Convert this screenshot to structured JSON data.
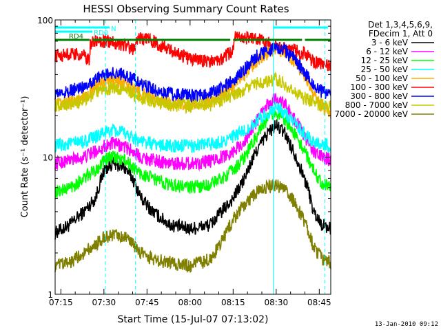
{
  "chart_data": {
    "type": "line",
    "title": "HESSI Observing Summary Count Rates",
    "xlabel": "Start Time (15-Jul-07 07:13:02)",
    "ylabel": "Count Rate (s⁻¹ detector⁻¹)",
    "yscale": "log",
    "ylim": [
      1,
      100
    ],
    "xlim_minutes": [
      0,
      96
    ],
    "x_tick_labels": [
      "07:15",
      "07:30",
      "07:45",
      "08:00",
      "08:15",
      "08:30",
      "08:45"
    ],
    "x_tick_minutes": [
      2,
      17,
      32,
      47,
      62,
      77,
      92
    ],
    "y_tick_labels": [
      "1",
      "10",
      "100"
    ],
    "y_tick_values": [
      1,
      10,
      100
    ],
    "grid": false,
    "legend_position": "right",
    "legend_header": [
      "Det 1,3,4,5,6,9,",
      "FDecim 1, Att 0"
    ],
    "x_unit": "minutes since 07:13:02",
    "series": [
      {
        "name": "3 - 6 keV",
        "color": "#000000",
        "x": [
          0,
          5,
          10,
          14,
          17,
          20,
          24,
          27,
          30,
          34,
          40,
          47,
          54,
          58,
          62,
          66,
          70,
          74,
          77,
          80,
          84,
          88,
          90,
          93,
          96
        ],
        "y": [
          2.8,
          3.2,
          4,
          5,
          8,
          9,
          8.5,
          7,
          5,
          4,
          3.2,
          3,
          3.2,
          4,
          5,
          7,
          11,
          15,
          17,
          15,
          10,
          6,
          4,
          3.2,
          3
        ]
      },
      {
        "name": "6 - 12 keV",
        "color": "#ff00ff",
        "x": [
          0,
          5,
          10,
          14,
          17,
          20,
          24,
          27,
          30,
          34,
          40,
          47,
          54,
          58,
          62,
          66,
          70,
          74,
          77,
          80,
          84,
          88,
          90,
          93,
          96
        ],
        "y": [
          9,
          9.5,
          10,
          11,
          12,
          12.5,
          12,
          11,
          10,
          9.5,
          9,
          9,
          9.3,
          10,
          11,
          13,
          18,
          24,
          27,
          24,
          18,
          13,
          11,
          10,
          9.5
        ]
      },
      {
        "name": "12 - 25 keV",
        "color": "#00ff00",
        "x": [
          0,
          5,
          10,
          14,
          17,
          20,
          24,
          27,
          30,
          34,
          40,
          47,
          54,
          58,
          62,
          66,
          70,
          74,
          77,
          80,
          84,
          88,
          90,
          93,
          96
        ],
        "y": [
          5.5,
          6,
          7,
          8,
          9.5,
          10,
          9.5,
          8.5,
          7.5,
          7,
          6.3,
          6,
          6.3,
          7,
          8,
          10,
          14,
          19,
          21,
          19,
          14,
          10,
          8,
          6.5,
          6
        ]
      },
      {
        "name": "25 - 50 keV",
        "color": "#00ffff",
        "x": [
          0,
          5,
          10,
          14,
          17,
          20,
          24,
          27,
          30,
          34,
          40,
          47,
          54,
          58,
          62,
          66,
          70,
          74,
          77,
          80,
          84,
          88,
          90,
          93,
          96
        ],
        "y": [
          12,
          12.5,
          13,
          14,
          15,
          15.5,
          15,
          14,
          13,
          12.5,
          12,
          12,
          12.5,
          13,
          14,
          15.5,
          18,
          21,
          23,
          21,
          17,
          14,
          13,
          12.5,
          12
        ]
      },
      {
        "name": "50 - 100 keV",
        "color": "#ffaa00",
        "x": [
          0,
          5,
          10,
          14,
          17,
          20,
          24,
          27,
          30,
          34,
          40,
          47,
          54,
          58,
          62,
          66,
          70,
          74,
          77,
          80,
          84,
          88,
          90,
          93,
          96
        ],
        "y": [
          24,
          25,
          28,
          32,
          35,
          36,
          35,
          32,
          29,
          27,
          25,
          24,
          25,
          28,
          33,
          40,
          50,
          58,
          62,
          58,
          48,
          36,
          28,
          23,
          21
        ]
      },
      {
        "name": "100 - 300 keV",
        "color": "#ff0000",
        "x": [
          0,
          5,
          10,
          12,
          12.3,
          16,
          20,
          24,
          28,
          28.3,
          34,
          40,
          47,
          54,
          58,
          62,
          62.3,
          66,
          72,
          76,
          80,
          84,
          86,
          86.3,
          90,
          96
        ],
        "y": [
          55,
          56,
          55,
          50,
          68,
          70,
          69,
          66,
          60,
          75,
          70,
          60,
          52,
          50,
          52,
          60,
          75,
          74,
          72,
          65,
          62,
          60,
          55,
          58,
          50,
          47
        ]
      },
      {
        "name": "300 - 800 keV",
        "color": "#0000ff",
        "x": [
          0,
          5,
          10,
          14,
          17,
          20,
          24,
          27,
          30,
          34,
          40,
          47,
          54,
          58,
          62,
          66,
          70,
          74,
          77,
          80,
          84,
          88,
          90,
          93,
          96
        ],
        "y": [
          29,
          30,
          33,
          37,
          40,
          41,
          40,
          37,
          34,
          31,
          29,
          28,
          29,
          32,
          36,
          44,
          54,
          60,
          62,
          60,
          50,
          38,
          33,
          30,
          29
        ]
      },
      {
        "name": "800 - 7000 keV",
        "color": "#c8c800",
        "x": [
          0,
          5,
          10,
          14,
          17,
          20,
          24,
          27,
          30,
          34,
          40,
          47,
          54,
          58,
          62,
          66,
          70,
          74,
          77,
          80,
          84,
          88,
          90,
          93,
          96
        ],
        "y": [
          24,
          24.5,
          26,
          29,
          31,
          32,
          31,
          29,
          27,
          25.5,
          24,
          23.5,
          24,
          26,
          28.5,
          31,
          34,
          36,
          37,
          34,
          29,
          26,
          25,
          24,
          23
        ]
      },
      {
        "name": "7000 - 20000 keV",
        "color": "#808000",
        "x": [
          0,
          5,
          10,
          14,
          17,
          20,
          24,
          27,
          30,
          34,
          40,
          47,
          54,
          58,
          62,
          66,
          70,
          74,
          77,
          80,
          84,
          88,
          90,
          93,
          96
        ],
        "y": [
          1.6,
          1.7,
          2,
          2.3,
          2.6,
          2.7,
          2.6,
          2.3,
          2,
          1.8,
          1.7,
          1.6,
          1.8,
          2.4,
          3.5,
          4.5,
          5.5,
          6,
          6.2,
          5.8,
          4.5,
          3,
          2.2,
          1.8,
          1.7
        ]
      }
    ],
    "flag_bars": [
      {
        "label": "N",
        "color": "#00ffff",
        "segments": [
          [
            0,
            19
          ],
          [
            76,
            95
          ]
        ]
      },
      {
        "label": "RD0",
        "color": "#00ffff",
        "segments": [
          [
            0,
            13
          ]
        ]
      },
      {
        "label": "RD4",
        "color": "#008000",
        "segments": [
          [
            0,
            12
          ],
          [
            13,
            61
          ],
          [
            62,
            86
          ],
          [
            87,
            96
          ]
        ]
      }
    ],
    "vertical_markers": [
      {
        "color": "#00ffff",
        "style": "solid",
        "x": [
          0,
          76
        ]
      },
      {
        "color": "#00ffff",
        "style": "dashed",
        "x": [
          17.5,
          28,
          94
        ]
      }
    ]
  },
  "footer": {
    "date": "13-Jan-2010 09:12"
  }
}
